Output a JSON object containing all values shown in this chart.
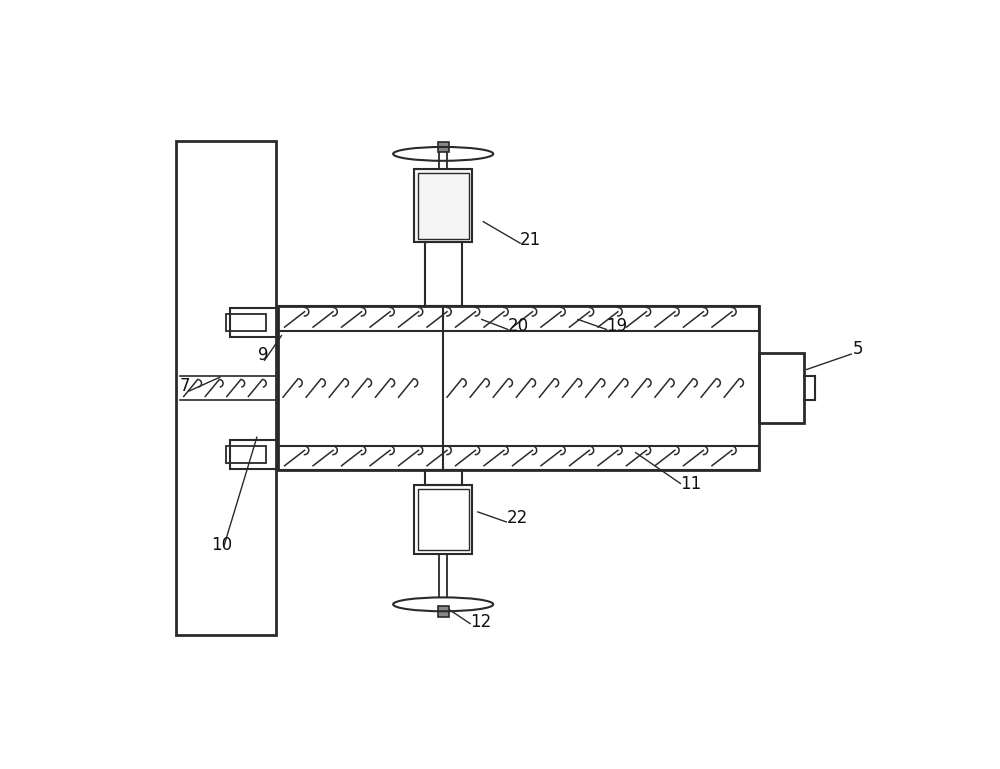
{
  "bg": "#ffffff",
  "lc": "#2a2a2a",
  "fig_w": 10.0,
  "fig_h": 7.69
}
